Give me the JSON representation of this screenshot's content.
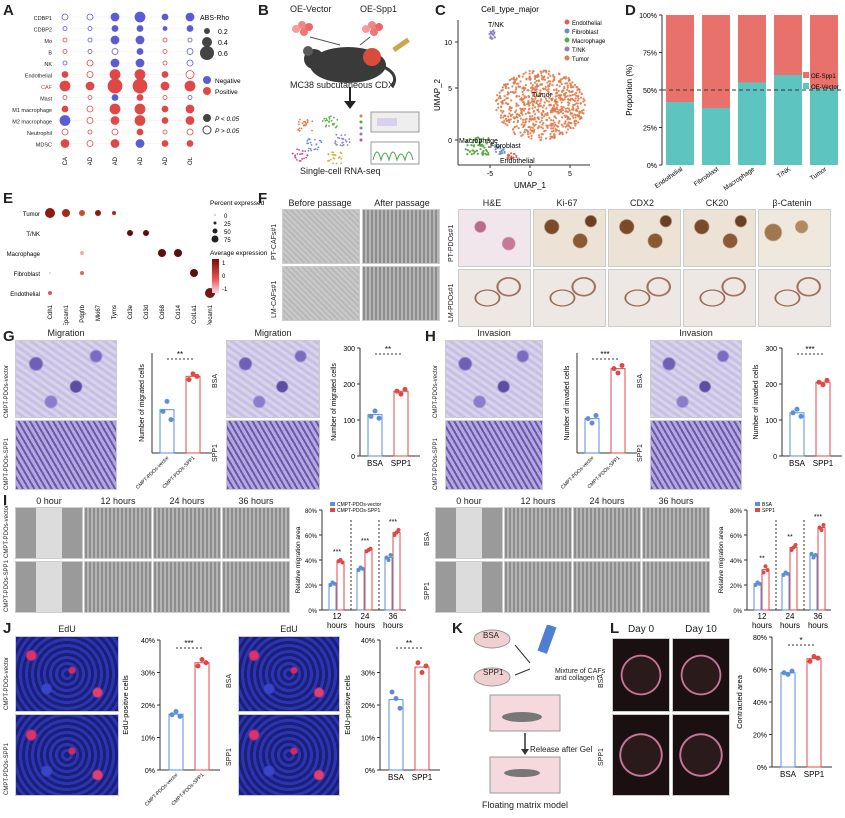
{
  "panel_letters": [
    "A",
    "B",
    "C",
    "D",
    "E",
    "F",
    "G",
    "H",
    "I",
    "J",
    "K",
    "L"
  ],
  "A": {
    "rows": [
      "CDBP1",
      "CDBP2",
      "Mo",
      "B",
      "NK",
      "Endothelial",
      "CAF",
      "Mast",
      "M1 macrophage",
      "M2 macrophage",
      "Neutrophil",
      "MDSC"
    ],
    "cols": [
      "ESCA",
      "STAD",
      "COAD",
      "READ",
      "PAAD",
      "CHOL"
    ],
    "legend_title": "ABS-Rho",
    "legend_sizes": [
      "0.2",
      "0.4",
      "0.6"
    ],
    "legend_colors": [
      "Negative",
      "Positive"
    ],
    "legend_p": [
      "P < 0.05",
      "P > 0.05"
    ],
    "color_neg": "#5b5bd6",
    "color_pos": "#e04848"
  },
  "B": {
    "oe_vector": "OE-Vector",
    "oe_spp1": "OE-Spp1",
    "model": "MC38 subcutaneous CDX",
    "method": "Single-cell RNA-seq"
  },
  "C": {
    "title": "Cell_type_major",
    "xlabel": "UMAP_1",
    "ylabel": "UMAP_2",
    "legend": [
      "Endothelial",
      "Fibroblast",
      "Macrophage",
      "T/NK",
      "Tumor"
    ],
    "colors": [
      "#e35f4f",
      "#6a8fc9",
      "#5ea84a",
      "#8a7fbf",
      "#e07b4a"
    ],
    "cluster_labels": [
      "T/NK",
      "Tumor",
      "Macrophage",
      "Fibroblast",
      "Endothelial"
    ],
    "xticks": [
      "-5",
      "0",
      "5"
    ],
    "yticks": [
      "10",
      "5",
      "0"
    ]
  },
  "chart_data": [
    {
      "type": "bar",
      "panel": "D",
      "categories": [
        "Endothelial",
        "Fibroblast",
        "Macrophage",
        "T/NK",
        "Tumor"
      ],
      "series": [
        {
          "name": "OE-Spp1",
          "values": [
            58,
            62,
            45,
            40,
            49
          ]
        },
        {
          "name": "OE-Vector",
          "values": [
            42,
            38,
            55,
            60,
            51
          ]
        }
      ],
      "ylabel": "Proportion (%)",
      "yticks": [
        "0%",
        "25%",
        "50%",
        "75%",
        "100%"
      ],
      "ylim": [
        0,
        100
      ],
      "colors": [
        "#e9716b",
        "#5ec4c0"
      ]
    }
  ],
  "E": {
    "rows": [
      "Tumor",
      "T/NK",
      "Macrophage",
      "Fibroblast",
      "Endothelial"
    ],
    "cols": [
      "Cdh1",
      "Epcam1",
      "Pdgfrb",
      "Mki67",
      "Tyms",
      "Cd3e",
      "Cd3d",
      "Cd68",
      "Cd14",
      "Col1a1",
      "Pecam1"
    ],
    "legend_pct_title": "Percent expressed",
    "legend_pct": [
      "0",
      "25",
      "50",
      "75"
    ],
    "legend_avg_title": "Average expression",
    "legend_avg": [
      "1",
      "0",
      "-1"
    ]
  },
  "F": {
    "left_cols": [
      "Before passage",
      "After passage"
    ],
    "left_rows": [
      "PT-CAFs#1",
      "LM-CAFs#1"
    ],
    "right_cols": [
      "H&E",
      "Ki-67",
      "CDX2",
      "CK20",
      "β-Catenin"
    ],
    "right_rows": [
      "PT-PDOs#1",
      "LM-PDOs#1"
    ]
  },
  "G": {
    "left_title": "Migration",
    "right_title": "Migration",
    "left_rows": [
      "CMPT-PDOs-vector",
      "CMPT-PDOs-SPP1"
    ],
    "right_rows": [
      "BSA",
      "SPP1"
    ],
    "left_ylabel": "Number of migrated cells",
    "right_ylabel": "Number of migrated cells",
    "left_groups": [
      "CMPT-PDOs-vector",
      "CMPT-PDOs-SPP1"
    ],
    "right_groups": [
      "BSA",
      "SPP1"
    ],
    "right_yticks": [
      "0",
      "100",
      "200",
      "300"
    ],
    "left_sig": "**",
    "right_sig": "**"
  },
  "H": {
    "left_title": "Invasion",
    "right_title": "Invasion",
    "left_rows": [
      "CMPT-PDOs-vector",
      "CMPT-PDOs-SPP1"
    ],
    "right_rows": [
      "BSA",
      "SPP1"
    ],
    "left_ylabel": "Number of invaded cells",
    "right_ylabel": "Number of invaded cells",
    "left_groups": [
      "CMPT-PDOs-vector",
      "CMPT-PDOs-SPP1"
    ],
    "right_groups": [
      "BSA",
      "SPP1"
    ],
    "right_yticks": [
      "0",
      "100",
      "200",
      "300"
    ],
    "left_sig": "***",
    "right_sig": "***"
  },
  "I": {
    "time_labels": [
      "0 hour",
      "12 hours",
      "24 hours",
      "36 hours"
    ],
    "left_rows": [
      "CMPT-PDOs-vector",
      "CMPT-PDOs-SPP1"
    ],
    "right_rows": [
      "BSA",
      "SPP1"
    ],
    "left_ylabel": "Relative migration area",
    "right_ylabel": "Relative migration area",
    "x_groups": [
      "12 hours",
      "24 hours",
      "36 hours"
    ],
    "left_legend": [
      "CMPT-PDOs-vector",
      "CMPT-PDOs-SPP1"
    ],
    "right_legend": [
      "BSA",
      "SPP1"
    ],
    "yticks": [
      "0%",
      "20%",
      "40%",
      "60%",
      "80%"
    ],
    "left_sig": [
      "***",
      "***",
      "***"
    ],
    "right_sig": [
      "**",
      "**",
      "***"
    ]
  },
  "J": {
    "title": "EdU",
    "left_rows": [
      "CMPT-PDOs-vector",
      "CMPT-PDOs-SPP1"
    ],
    "right_rows": [
      "BSA",
      "SPP1"
    ],
    "ylabel": "EdU-positive cells",
    "yticks": [
      "0%",
      "10%",
      "20%",
      "30%",
      "40%"
    ],
    "left_groups": [
      "CMPT-PDOs-vector",
      "CMPT-PDOs-SPP1"
    ],
    "right_groups": [
      "BSA",
      "SPP1"
    ],
    "left_sig": "***",
    "right_sig": "**"
  },
  "K": {
    "bsa": "BSA",
    "spp1": "SPP1",
    "mixture": "Mixture of CAFs and collagen I",
    "release": "Release after Gel",
    "model": "Floating matrix model"
  },
  "L": {
    "cols": [
      "Day 0",
      "Day 10"
    ],
    "rows": [
      "BSA",
      "SPP1"
    ],
    "ylabel": "Contracted area",
    "yticks": [
      "0%",
      "20%",
      "40%",
      "60%",
      "80%"
    ],
    "groups": [
      "BSA",
      "SPP1"
    ],
    "sig": "*"
  }
}
